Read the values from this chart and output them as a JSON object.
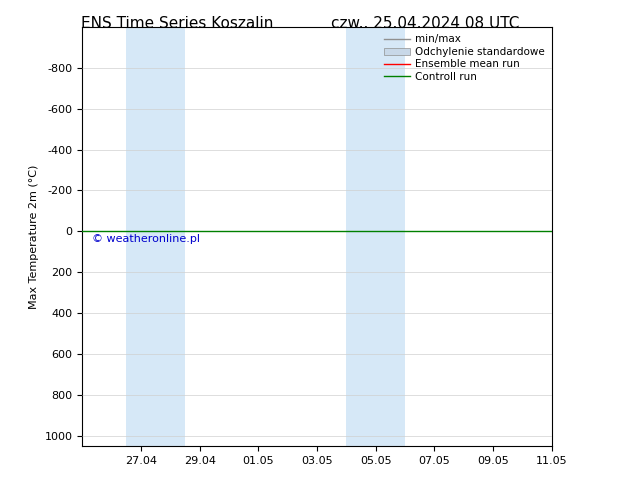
{
  "title_left": "ENS Time Series Koszalin",
  "title_right": "czw.. 25.04.2024 08 UTC",
  "ylabel": "Max Temperature 2m (°C)",
  "ylim_top": -1000,
  "ylim_bottom": 1050,
  "yticks": [
    -800,
    -600,
    -400,
    -200,
    0,
    200,
    400,
    600,
    800,
    1000
  ],
  "xtick_labels": [
    "27.04",
    "29.04",
    "01.05",
    "03.05",
    "05.05",
    "07.05",
    "09.05",
    "11.05"
  ],
  "xtick_positions": [
    2,
    4,
    6,
    8,
    10,
    12,
    14,
    16
  ],
  "xlim": [
    0,
    16
  ],
  "weekend_ranges": [
    [
      1.5,
      3.5
    ],
    [
      9.0,
      11.0
    ]
  ],
  "weekend_color": "#d6e8f7",
  "control_run_y": 0,
  "control_run_color": "#008000",
  "ensemble_mean_color": "#ff0000",
  "std_shade_color": "#c8d8e8",
  "minmax_color": "#909090",
  "watermark_text": "© weatheronline.pl",
  "watermark_color": "#0000cc",
  "legend_labels": [
    "min/max",
    "Odchylenie standardowe",
    "Ensemble mean run",
    "Controll run"
  ],
  "legend_colors": [
    "#909090",
    "#c8d8e8",
    "#ff0000",
    "#008000"
  ],
  "background_color": "#ffffff",
  "plot_bg_color": "#ffffff"
}
